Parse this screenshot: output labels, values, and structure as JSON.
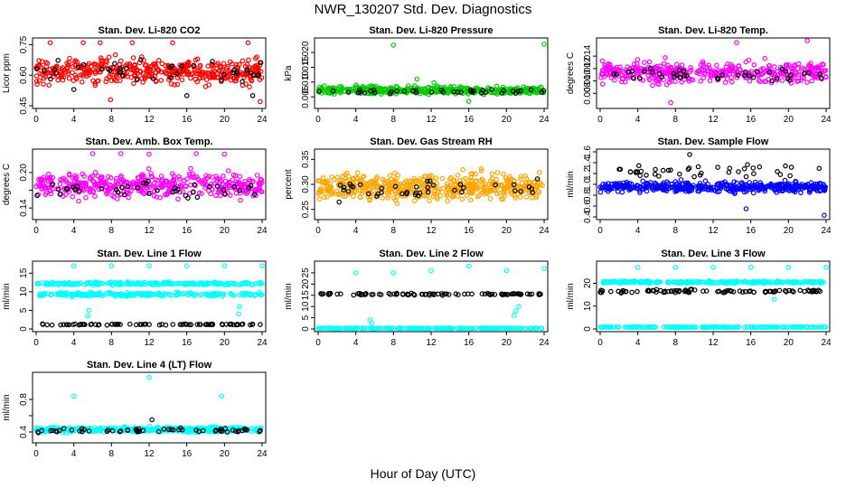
{
  "figure": {
    "title": "NWR_130207  Std. Dev. Diagnostics",
    "xlabel": "Hour of Day (UTC)"
  },
  "chart_data": [
    {
      "type": "scatter",
      "title": "Stan. Dev. Li-820 CO2",
      "ylabel": "Licor ppm",
      "xlim": [
        0,
        24
      ],
      "xticks": [
        0,
        4,
        8,
        12,
        16,
        20,
        24
      ],
      "ylim": [
        0.45,
        0.77
      ],
      "yticks": [
        0.45,
        0.6,
        0.75
      ],
      "ytick_labels": [
        "0.45",
        "0.60",
        "0.75"
      ],
      "grid": false,
      "series": [
        {
          "color": "#ff0000",
          "center": 0.62,
          "spread": 0.06,
          "n": 420,
          "outliers": [
            [
              1.5,
              0.76
            ],
            [
              5.0,
              0.76
            ],
            [
              6.8,
              0.76
            ],
            [
              10.2,
              0.76
            ],
            [
              14.5,
              0.76
            ],
            [
              22.5,
              0.76
            ],
            [
              7.9,
              0.48
            ],
            [
              23.8,
              0.47
            ]
          ]
        },
        {
          "color": "#000000",
          "center": 0.62,
          "spread": 0.05,
          "n": 40,
          "outliers": [
            [
              4,
              0.53
            ],
            [
              16,
              0.5
            ],
            [
              23,
              0.5
            ]
          ]
        }
      ]
    },
    {
      "type": "scatter",
      "title": "Stan. Dev. Li-820 Pressure",
      "ylabel": "kPa",
      "xlim": [
        0,
        24
      ],
      "xticks": [
        0,
        4,
        8,
        12,
        16,
        20,
        24
      ],
      "ylim": [
        0.002,
        0.024
      ],
      "yticks": [
        0.005,
        0.01,
        0.015,
        0.02
      ],
      "ytick_labels": [
        "0.005",
        "0.010",
        "0.015",
        "0.020"
      ],
      "grid": false,
      "series": [
        {
          "color": "#00cc00",
          "center": 0.0072,
          "spread": 0.0012,
          "n": 420,
          "outliers": [
            [
              8,
              0.0225
            ],
            [
              24,
              0.0228
            ],
            [
              10.5,
              0.011
            ],
            [
              4,
              0.009
            ],
            [
              12.3,
              0.0098
            ],
            [
              16,
              0.0035
            ]
          ]
        },
        {
          "color": "#000000",
          "center": 0.0068,
          "spread": 0.0008,
          "n": 40,
          "outliers": []
        }
      ]
    },
    {
      "type": "scatter",
      "title": "Stan. Dev. Li-820 Temp.",
      "ylabel": "degrees C",
      "xlim": [
        0,
        24
      ],
      "xticks": [
        0,
        4,
        8,
        12,
        16,
        20,
        24
      ],
      "ylim": [
        0.006,
        0.0165
      ],
      "yticks": [
        0.008,
        0.01,
        0.012,
        0.014
      ],
      "ytick_labels": [
        "0.008",
        "0.010",
        "0.012",
        "0.014"
      ],
      "grid": false,
      "series": [
        {
          "color": "#ff00ff",
          "center": 0.0114,
          "spread": 0.0016,
          "n": 420,
          "outliers": [
            [
              7.5,
              0.0065
            ],
            [
              14.5,
              0.0162
            ],
            [
              22,
              0.0165
            ]
          ]
        },
        {
          "color": "#000000",
          "center": 0.0112,
          "spread": 0.001,
          "n": 40,
          "outliers": []
        }
      ]
    },
    {
      "type": "scatter",
      "title": "Stan. Dev. Amb. Box Temp.",
      "ylabel": "degrees C",
      "xlim": [
        0,
        24
      ],
      "xticks": [
        0,
        4,
        8,
        12,
        16,
        20,
        24
      ],
      "ylim": [
        0.125,
        0.235
      ],
      "yticks": [
        0.14,
        0.17,
        0.2
      ],
      "ytick_labels": [
        "0.14",
        "",
        "0.20"
      ],
      "grid": false,
      "series": [
        {
          "color": "#ff00ff",
          "center": 0.178,
          "spread": 0.02,
          "n": 420,
          "outliers": [
            [
              6,
              0.232
            ],
            [
              9,
              0.232
            ],
            [
              12,
              0.231
            ],
            [
              17,
              0.232
            ],
            [
              20,
              0.231
            ]
          ]
        },
        {
          "color": "#000000",
          "center": 0.172,
          "spread": 0.012,
          "n": 40,
          "outliers": []
        }
      ]
    },
    {
      "type": "scatter",
      "title": "Stan. Dev. Gas Stream RH",
      "ylabel": "percent",
      "xlim": [
        0,
        24
      ],
      "xticks": [
        0,
        4,
        8,
        12,
        16,
        20,
        24
      ],
      "ylim": [
        0.235,
        0.365
      ],
      "yticks": [
        0.25,
        0.3,
        0.35
      ],
      "ytick_labels": [
        "0.25",
        "0.30",
        "0.35"
      ],
      "grid": false,
      "series": [
        {
          "color": "#ffa500",
          "center": 0.295,
          "spread": 0.025,
          "n": 520,
          "outliers": []
        },
        {
          "color": "#000000",
          "center": 0.29,
          "spread": 0.022,
          "n": 40,
          "outliers": []
        }
      ]
    },
    {
      "type": "scatter",
      "title": "Stan. Dev. Sample Flow",
      "ylabel": "ml/min",
      "xlim": [
        0,
        24
      ],
      "xticks": [
        0,
        4,
        8,
        12,
        16,
        20,
        24
      ],
      "ylim": [
        0.4,
        1.6
      ],
      "yticks": [
        0.4,
        0.6,
        0.8,
        1.0,
        1.2,
        1.4,
        1.6
      ],
      "ytick_labels": [
        "0.4",
        "0.6",
        "0.8",
        "1.0",
        "1.2",
        "1.4",
        "1.6"
      ],
      "grid": false,
      "series": [
        {
          "color": "#0000ff",
          "center": 0.95,
          "spread": 0.09,
          "n": 440,
          "outliers": [
            [
              23.8,
              0.43
            ],
            [
              15.5,
              0.55
            ]
          ]
        },
        {
          "color": "#000000",
          "center": 1.25,
          "spread": 0.1,
          "n": 40,
          "outliers": [
            [
              9.5,
              1.55
            ]
          ]
        }
      ]
    },
    {
      "type": "scatter",
      "title": "Stan. Dev. Line 1 Flow",
      "ylabel": "ml/min",
      "xlim": [
        0,
        24
      ],
      "xticks": [
        0,
        4,
        8,
        12,
        16,
        20,
        24
      ],
      "ylim": [
        0,
        17.5
      ],
      "yticks": [
        0,
        5,
        10,
        15
      ],
      "ytick_labels": [
        "0",
        "5",
        "10",
        "15"
      ],
      "grid": false,
      "series": [
        {
          "color": "#00ffff",
          "center": 12.2,
          "spread": 0.4,
          "n": 220,
          "outliers": [
            [
              4,
              17
            ],
            [
              8,
              17
            ],
            [
              12,
              17
            ],
            [
              16,
              17
            ],
            [
              20,
              17
            ],
            [
              24,
              17
            ]
          ]
        },
        {
          "color": "#00ffff",
          "center": 9.3,
          "spread": 0.5,
          "n": 220,
          "outliers": [
            [
              5.5,
              3.5
            ],
            [
              5.6,
              5
            ],
            [
              21.5,
              4
            ],
            [
              21.6,
              6
            ]
          ]
        },
        {
          "color": "#000000",
          "center": 1.2,
          "spread": 0.15,
          "n": 80,
          "outliers": []
        }
      ]
    },
    {
      "type": "scatter",
      "title": "Stan. Dev. Line 2 Flow",
      "ylabel": "ml/min",
      "xlim": [
        0,
        24
      ],
      "xticks": [
        0,
        4,
        8,
        12,
        16,
        20,
        24
      ],
      "ylim": [
        0,
        29
      ],
      "yticks": [
        0,
        5,
        10,
        15,
        20,
        25
      ],
      "ytick_labels": [
        "0",
        "5",
        "10",
        "15",
        "20",
        "25"
      ],
      "grid": false,
      "series": [
        {
          "color": "#00ffff",
          "center": 0.3,
          "spread": 0.15,
          "n": 220,
          "outliers": [
            [
              4,
              25
            ],
            [
              8,
              25
            ],
            [
              12,
              26
            ],
            [
              16,
              28
            ],
            [
              20,
              26
            ],
            [
              24,
              27
            ],
            [
              5.5,
              4
            ],
            [
              5.7,
              2.5
            ],
            [
              21,
              8
            ],
            [
              21.3,
              10
            ],
            [
              20.8,
              6
            ]
          ]
        },
        {
          "color": "#000000",
          "center": 15.5,
          "spread": 0.4,
          "n": 90,
          "outliers": []
        }
      ]
    },
    {
      "type": "scatter",
      "title": "Stan. Dev. Line 3 Flow",
      "ylabel": "ml/min",
      "xlim": [
        0,
        24
      ],
      "xticks": [
        0,
        4,
        8,
        12,
        16,
        20,
        24
      ],
      "ylim": [
        0,
        28.5
      ],
      "yticks": [
        0,
        10,
        20
      ],
      "ytick_labels": [
        "0",
        "10",
        "20"
      ],
      "grid": false,
      "series": [
        {
          "color": "#00ffff",
          "center": 20.5,
          "spread": 0.5,
          "n": 260,
          "outliers": [
            [
              4,
              27
            ],
            [
              8,
              27
            ],
            [
              12,
              27
            ],
            [
              16,
              27
            ],
            [
              20,
              27
            ],
            [
              24,
              27
            ],
            [
              18.5,
              13
            ]
          ]
        },
        {
          "color": "#00ffff",
          "center": 0.8,
          "spread": 0.15,
          "n": 220,
          "outliers": []
        },
        {
          "color": "#000000",
          "center": 16.5,
          "spread": 0.6,
          "n": 90,
          "outliers": []
        }
      ]
    },
    {
      "type": "scatter",
      "title": "Stan. Dev. Line 4 (LT) Flow",
      "ylabel": "ml/min",
      "xlim": [
        0,
        24
      ],
      "xticks": [
        0,
        4,
        8,
        12,
        16,
        20,
        24
      ],
      "ylim": [
        0.3,
        1.1
      ],
      "yticks": [
        0.4,
        0.6,
        0.8
      ],
      "ytick_labels": [
        "0.4",
        "",
        "0.8"
      ],
      "grid": false,
      "series": [
        {
          "color": "#00ffff",
          "center": 0.43,
          "spread": 0.03,
          "n": 420,
          "outliers": [
            [
              4,
              0.84
            ],
            [
              12,
              1.07
            ],
            [
              19.7,
              0.84
            ]
          ]
        },
        {
          "color": "#000000",
          "center": 0.42,
          "spread": 0.025,
          "n": 60,
          "outliers": [
            [
              12.3,
              0.55
            ]
          ]
        }
      ]
    }
  ]
}
